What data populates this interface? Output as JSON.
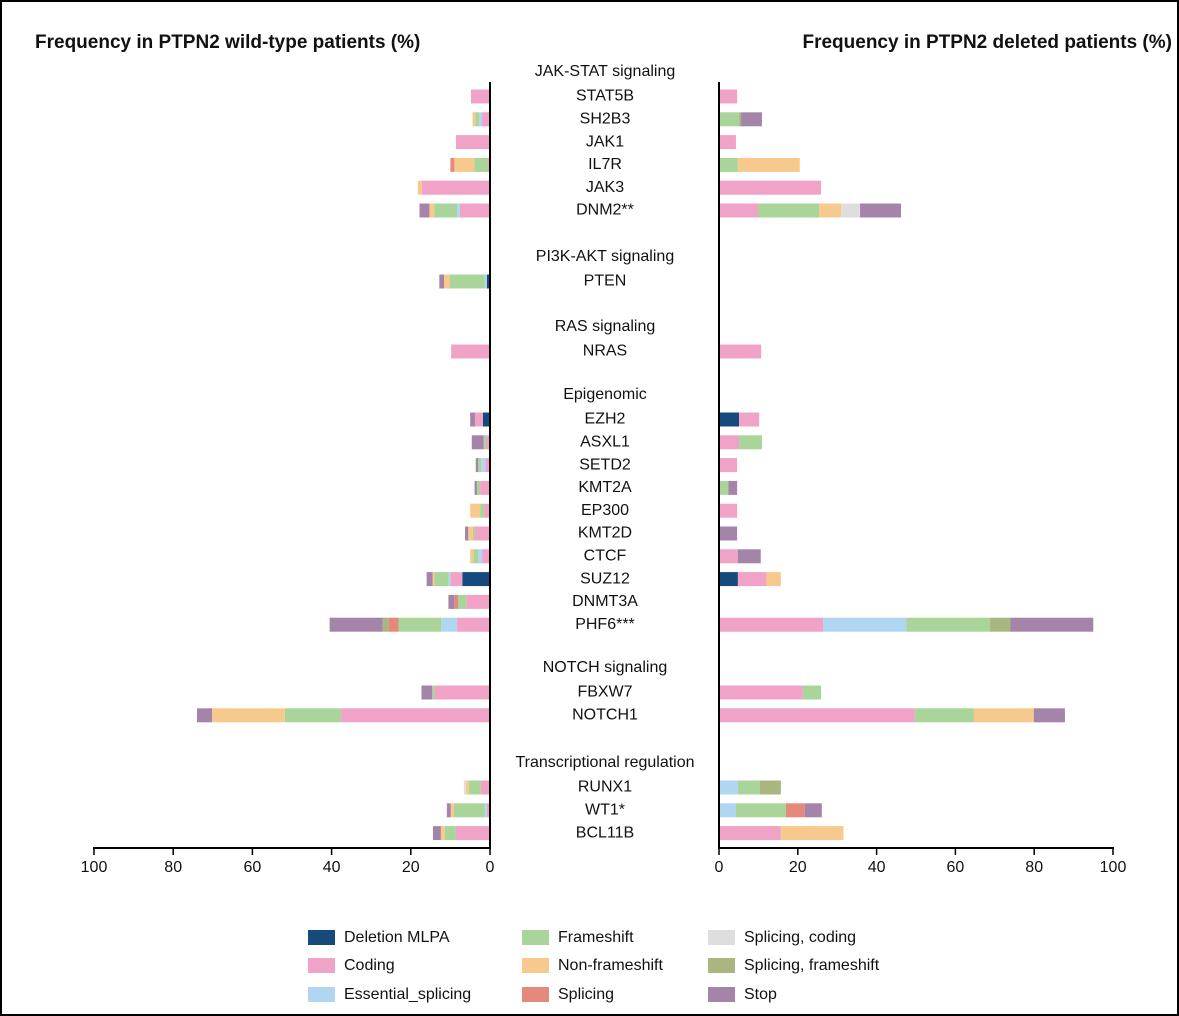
{
  "chart_data": {
    "type": "bar",
    "orientation": "horizontal",
    "stacked": true,
    "groups": [
      {
        "name": "JAK-STAT signaling",
        "categories": [
          {
            "name": "STAT5B"
          },
          {
            "name": "SH2B3"
          },
          {
            "name": "JAK1"
          },
          {
            "name": "IL7R"
          },
          {
            "name": "JAK3"
          },
          {
            "name": "DNM2**",
            "color": "#2f5f8f"
          }
        ]
      },
      {
        "name": "PI3K-AKT signaling",
        "categories": [
          {
            "name": "PTEN"
          }
        ]
      },
      {
        "name": "RAS signaling",
        "categories": [
          {
            "name": "NRAS"
          }
        ]
      },
      {
        "name": "Epigenomic",
        "categories": [
          {
            "name": "EZH2"
          },
          {
            "name": "ASXL1"
          },
          {
            "name": "SETD2"
          },
          {
            "name": "KMT2A"
          },
          {
            "name": "EP300"
          },
          {
            "name": "KMT2D"
          },
          {
            "name": "CTCF"
          },
          {
            "name": "SUZ12"
          },
          {
            "name": "DNMT3A"
          },
          {
            "name": "PHF6***",
            "color": "#2f5f8f"
          }
        ]
      },
      {
        "name": "NOTCH signaling",
        "categories": [
          {
            "name": "FBXW7"
          },
          {
            "name": "NOTCH1"
          }
        ]
      },
      {
        "name": "Transcriptional regulation",
        "categories": [
          {
            "name": "RUNX1"
          },
          {
            "name": "WT1*",
            "color": "#2f5f8f"
          },
          {
            "name": "BCL11B"
          }
        ]
      }
    ],
    "group_color": "#e8901a",
    "series": [
      {
        "name": "Deletion MLPA",
        "color": "#174a7c"
      },
      {
        "name": "Coding",
        "color": "#f0a3c6"
      },
      {
        "name": "Essential_splicing",
        "color": "#b0d6f2"
      },
      {
        "name": "Frameshift",
        "color": "#a9d59b"
      },
      {
        "name": "Non-frameshift",
        "color": "#f8c98c"
      },
      {
        "name": "Splicing",
        "color": "#e38a7c"
      },
      {
        "name": "Splicing, coding",
        "color": "#dedede"
      },
      {
        "name": "Splicing, frameshift",
        "color": "#a9b67f"
      },
      {
        "name": "Stop",
        "color": "#a584a9"
      }
    ],
    "panels": [
      {
        "title": "Frequency in PTPN2 wild-type patients (%)",
        "reversed": true,
        "xlim": [
          0,
          100
        ],
        "xticks": [
          0,
          20,
          40,
          60,
          80,
          100
        ],
        "values": [
          [
            0,
            0,
            0,
            0,
            0,
            0,
            0.8,
            0,
            1.8,
            0,
            0,
            0,
            0,
            0,
            0,
            7,
            0,
            0,
            0,
            0,
            0,
            0,
            0
          ],
          [
            4.8,
            2,
            8.6,
            0.5,
            17.2,
            7.6,
            0,
            9.8,
            2,
            1,
            1.2,
            2.5,
            1.5,
            3.8,
            2,
            3,
            6,
            8.3,
            14,
            37.6,
            2.3,
            0.8,
            8.6
          ],
          [
            0,
            0.7,
            0,
            0,
            0,
            0.7,
            0.5,
            0,
            0,
            0,
            1,
            0,
            0,
            0,
            1,
            0.5,
            0,
            4,
            0,
            0,
            0,
            0.5,
            0
          ],
          [
            0,
            1,
            0,
            3.5,
            0,
            5.8,
            8.8,
            0,
            0,
            0.6,
            0.8,
            0.8,
            1,
            0.5,
            1.2,
            3.5,
            2,
            10.8,
            0.6,
            14.2,
            3,
            7.8,
            2.8
          ],
          [
            0,
            0.7,
            0,
            5,
            1,
            1.2,
            1.5,
            0,
            0,
            0,
            0,
            0,
            2.5,
            1.2,
            0.8,
            0.5,
            0,
            0,
            0,
            18.4,
            0.8,
            0.8,
            1
          ],
          [
            0,
            0,
            0,
            1,
            0,
            0,
            0,
            0,
            0,
            0,
            0,
            0,
            0,
            0,
            0,
            0,
            1,
            2.5,
            0,
            0,
            0,
            0,
            0
          ],
          [
            0,
            0,
            0,
            0,
            0,
            0,
            0,
            0,
            0,
            0,
            0,
            0,
            0,
            0,
            0,
            0,
            0,
            0,
            0,
            0,
            0.5,
            0,
            0
          ],
          [
            0,
            0,
            0,
            0,
            0,
            0,
            0,
            0,
            0,
            0,
            0,
            0,
            0,
            0,
            0,
            0,
            0,
            1.5,
            0,
            0,
            0,
            0,
            0
          ],
          [
            0,
            0,
            0,
            0,
            0,
            2.5,
            1.2,
            0,
            1.2,
            3,
            0.6,
            0.6,
            0,
            0.8,
            0,
            1.5,
            1.5,
            13.4,
            2.7,
            3.8,
            0,
            1,
            2
          ]
        ]
      },
      {
        "title": "Frequency in PTPN2 deleted patients (%)",
        "reversed": false,
        "xlim": [
          0,
          100
        ],
        "xticks": [
          0,
          20,
          40,
          60,
          80,
          100
        ],
        "values": [
          [
            0,
            0,
            0,
            0,
            0,
            0,
            0,
            0,
            5.1,
            0,
            0,
            0,
            0,
            0,
            0,
            4.8,
            0,
            0,
            0,
            0,
            0,
            0,
            0
          ],
          [
            4.6,
            0,
            4.3,
            0,
            25.9,
            9.9,
            0,
            10.7,
            5.1,
            5.1,
            4.6,
            0,
            4.6,
            0,
            4.8,
            7.3,
            0,
            26.4,
            21.3,
            49.7,
            0,
            0,
            15.7
          ],
          [
            0,
            0,
            0,
            0,
            0,
            0,
            0,
            0,
            0,
            0,
            0,
            0,
            0,
            0,
            0,
            0,
            0,
            21.1,
            0,
            0,
            4.8,
            4.3,
            0
          ],
          [
            0,
            5.1,
            0,
            4.8,
            0,
            15.5,
            0,
            0,
            0,
            5.8,
            0,
            2.4,
            0,
            0,
            0,
            0,
            0,
            21.3,
            4.6,
            15,
            5.6,
            12.7,
            0
          ],
          [
            0,
            0,
            0,
            15.7,
            0,
            5.6,
            0,
            0,
            0,
            0,
            0,
            0,
            0,
            0,
            0,
            3.6,
            0,
            0,
            0,
            15.2,
            0,
            0,
            15.9
          ],
          [
            0,
            0,
            0,
            0,
            0,
            0,
            0,
            0,
            0,
            0,
            0,
            0,
            0,
            0,
            0,
            0,
            0,
            0,
            0,
            0,
            0,
            4.8,
            0
          ],
          [
            0,
            0,
            0,
            0,
            0,
            4.8,
            0,
            0,
            0,
            0,
            0,
            0,
            0,
            0,
            0,
            0,
            0,
            0,
            0,
            0,
            0,
            0,
            0
          ],
          [
            0,
            0.5,
            0,
            0,
            0,
            0,
            0,
            0,
            0,
            0,
            0,
            0,
            0,
            0,
            0,
            0,
            0,
            5.1,
            0,
            0,
            5.3,
            0,
            0
          ],
          [
            0,
            5.3,
            0,
            0,
            0,
            10.4,
            0,
            0,
            0,
            0,
            0,
            2.2,
            0,
            4.6,
            5.8,
            0,
            0,
            21.1,
            0,
            7.9,
            0,
            4.3,
            0
          ]
        ]
      }
    ]
  }
}
